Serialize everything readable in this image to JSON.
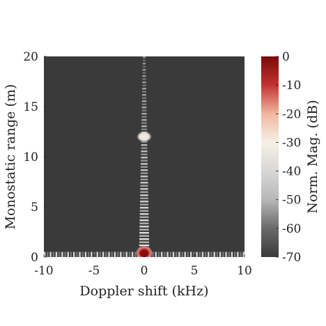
{
  "chart_data": {
    "type": "heatmap",
    "title": "",
    "xlabel": "Doppler shift (kHz)",
    "ylabel": "Monostatic range (m)",
    "xlim": [
      -10,
      10
    ],
    "ylim": [
      0,
      20
    ],
    "x_ticks": [
      -10,
      -5,
      0,
      5,
      10
    ],
    "x_tick_labels": [
      "-10",
      "-5",
      "0",
      "5",
      "10"
    ],
    "y_ticks": [
      0,
      5,
      10,
      15,
      20
    ],
    "y_tick_labels": [
      "0",
      "5",
      "10",
      "15",
      "20"
    ],
    "colorbar": {
      "label": "Norm. Mag. (dB)",
      "range": [
        -70,
        0
      ],
      "ticks": [
        0,
        -10,
        -20,
        -30,
        -40,
        -50,
        -60,
        -70
      ],
      "tick_labels": [
        "0",
        "-10",
        "-20",
        "-30",
        "-40",
        "-50",
        "-60",
        "-70"
      ],
      "colors": [
        "#7a0a0a",
        "#c23232",
        "#f0b7a0",
        "#f6f0e6",
        "#d7d7d7",
        "#b7b7b7",
        "#6a6a6a",
        "#3a3a3a"
      ]
    },
    "background_level_db": -70,
    "peaks": [
      {
        "doppler_khz": 0,
        "range_m": 0.2,
        "level_db": 0
      },
      {
        "doppler_khz": 0,
        "range_m": 12.0,
        "level_db": -40
      }
    ],
    "ridges": [
      {
        "orientation": "vertical",
        "doppler_khz": 0,
        "range_from_m": 0,
        "range_to_m": 20,
        "level_db": -50
      },
      {
        "orientation": "horizontal",
        "range_m": 0.1,
        "doppler_from_khz": -10,
        "doppler_to_khz": 10,
        "level_db": -50
      }
    ]
  }
}
